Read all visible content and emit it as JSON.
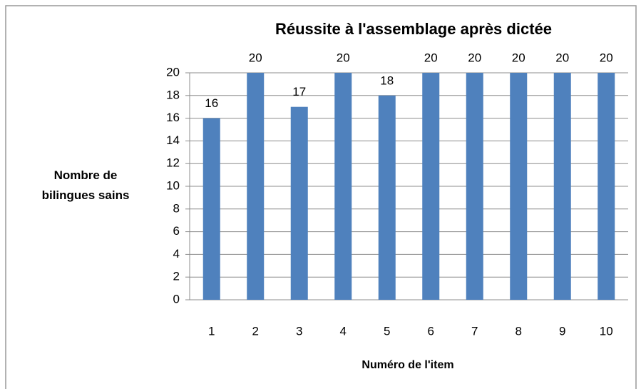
{
  "chart_data": {
    "type": "bar",
    "title": "Réussite à l'assemblage après dictée",
    "x_label": "Numéro de l'item",
    "y_label": "Nombre de bilingues sains",
    "categories": [
      "1",
      "2",
      "3",
      "4",
      "5",
      "6",
      "7",
      "8",
      "9",
      "10"
    ],
    "values": [
      16,
      20,
      17,
      20,
      18,
      20,
      20,
      20,
      20,
      20
    ],
    "color": "#4f81bd",
    "ylim": [
      0,
      20
    ],
    "yticks": [
      0,
      2,
      4,
      6,
      8,
      10,
      12,
      14,
      16,
      18,
      20
    ],
    "grid": true
  }
}
